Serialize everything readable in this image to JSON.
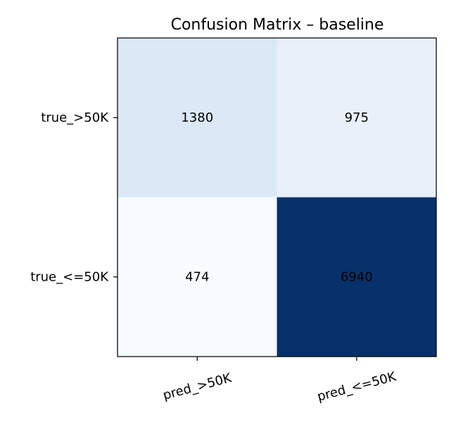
{
  "chart_data": {
    "type": "heatmap",
    "title": "Confusion Matrix – baseline",
    "xlabel": "",
    "ylabel": "",
    "x_categories": [
      "pred_>50K",
      "pred_<=50K"
    ],
    "y_categories": [
      "true_>50K",
      "true_<=50K"
    ],
    "values": [
      [
        1380,
        975
      ],
      [
        474,
        6940
      ]
    ],
    "colormap": "Blues",
    "colormap_low": "#f7fbff",
    "colormap_high": "#08306b",
    "grid": false,
    "legend": "none"
  }
}
